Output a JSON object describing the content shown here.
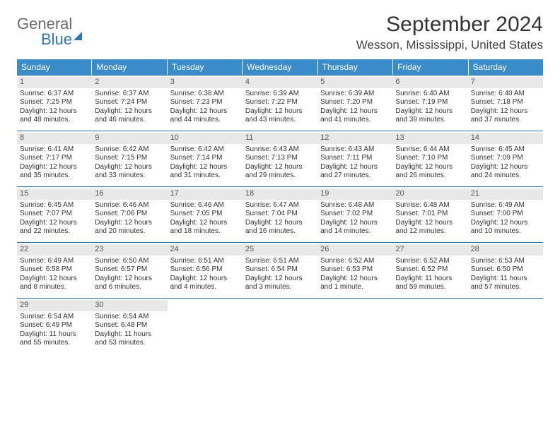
{
  "logo": {
    "text1": "General",
    "text2": "Blue"
  },
  "title": "September 2024",
  "location": "Wesson, Mississippi, United States",
  "colors": {
    "header_bg": "#3a8bc9",
    "header_text": "#ffffff",
    "week_border": "#2f6ba3",
    "daynum_bg": "#e8e8e8",
    "logo_gray": "#6b6b6b",
    "logo_blue": "#2f75b5"
  },
  "dow": [
    "Sunday",
    "Monday",
    "Tuesday",
    "Wednesday",
    "Thursday",
    "Friday",
    "Saturday"
  ],
  "weeks": [
    [
      {
        "n": "1",
        "sr": "Sunrise: 6:37 AM",
        "ss": "Sunset: 7:25 PM",
        "d1": "Daylight: 12 hours",
        "d2": "and 48 minutes."
      },
      {
        "n": "2",
        "sr": "Sunrise: 6:37 AM",
        "ss": "Sunset: 7:24 PM",
        "d1": "Daylight: 12 hours",
        "d2": "and 46 minutes."
      },
      {
        "n": "3",
        "sr": "Sunrise: 6:38 AM",
        "ss": "Sunset: 7:23 PM",
        "d1": "Daylight: 12 hours",
        "d2": "and 44 minutes."
      },
      {
        "n": "4",
        "sr": "Sunrise: 6:39 AM",
        "ss": "Sunset: 7:22 PM",
        "d1": "Daylight: 12 hours",
        "d2": "and 43 minutes."
      },
      {
        "n": "5",
        "sr": "Sunrise: 6:39 AM",
        "ss": "Sunset: 7:20 PM",
        "d1": "Daylight: 12 hours",
        "d2": "and 41 minutes."
      },
      {
        "n": "6",
        "sr": "Sunrise: 6:40 AM",
        "ss": "Sunset: 7:19 PM",
        "d1": "Daylight: 12 hours",
        "d2": "and 39 minutes."
      },
      {
        "n": "7",
        "sr": "Sunrise: 6:40 AM",
        "ss": "Sunset: 7:18 PM",
        "d1": "Daylight: 12 hours",
        "d2": "and 37 minutes."
      }
    ],
    [
      {
        "n": "8",
        "sr": "Sunrise: 6:41 AM",
        "ss": "Sunset: 7:17 PM",
        "d1": "Daylight: 12 hours",
        "d2": "and 35 minutes."
      },
      {
        "n": "9",
        "sr": "Sunrise: 6:42 AM",
        "ss": "Sunset: 7:15 PM",
        "d1": "Daylight: 12 hours",
        "d2": "and 33 minutes."
      },
      {
        "n": "10",
        "sr": "Sunrise: 6:42 AM",
        "ss": "Sunset: 7:14 PM",
        "d1": "Daylight: 12 hours",
        "d2": "and 31 minutes."
      },
      {
        "n": "11",
        "sr": "Sunrise: 6:43 AM",
        "ss": "Sunset: 7:13 PM",
        "d1": "Daylight: 12 hours",
        "d2": "and 29 minutes."
      },
      {
        "n": "12",
        "sr": "Sunrise: 6:43 AM",
        "ss": "Sunset: 7:11 PM",
        "d1": "Daylight: 12 hours",
        "d2": "and 27 minutes."
      },
      {
        "n": "13",
        "sr": "Sunrise: 6:44 AM",
        "ss": "Sunset: 7:10 PM",
        "d1": "Daylight: 12 hours",
        "d2": "and 26 minutes."
      },
      {
        "n": "14",
        "sr": "Sunrise: 6:45 AM",
        "ss": "Sunset: 7:09 PM",
        "d1": "Daylight: 12 hours",
        "d2": "and 24 minutes."
      }
    ],
    [
      {
        "n": "15",
        "sr": "Sunrise: 6:45 AM",
        "ss": "Sunset: 7:07 PM",
        "d1": "Daylight: 12 hours",
        "d2": "and 22 minutes."
      },
      {
        "n": "16",
        "sr": "Sunrise: 6:46 AM",
        "ss": "Sunset: 7:06 PM",
        "d1": "Daylight: 12 hours",
        "d2": "and 20 minutes."
      },
      {
        "n": "17",
        "sr": "Sunrise: 6:46 AM",
        "ss": "Sunset: 7:05 PM",
        "d1": "Daylight: 12 hours",
        "d2": "and 18 minutes."
      },
      {
        "n": "18",
        "sr": "Sunrise: 6:47 AM",
        "ss": "Sunset: 7:04 PM",
        "d1": "Daylight: 12 hours",
        "d2": "and 16 minutes."
      },
      {
        "n": "19",
        "sr": "Sunrise: 6:48 AM",
        "ss": "Sunset: 7:02 PM",
        "d1": "Daylight: 12 hours",
        "d2": "and 14 minutes."
      },
      {
        "n": "20",
        "sr": "Sunrise: 6:48 AM",
        "ss": "Sunset: 7:01 PM",
        "d1": "Daylight: 12 hours",
        "d2": "and 12 minutes."
      },
      {
        "n": "21",
        "sr": "Sunrise: 6:49 AM",
        "ss": "Sunset: 7:00 PM",
        "d1": "Daylight: 12 hours",
        "d2": "and 10 minutes."
      }
    ],
    [
      {
        "n": "22",
        "sr": "Sunrise: 6:49 AM",
        "ss": "Sunset: 6:58 PM",
        "d1": "Daylight: 12 hours",
        "d2": "and 8 minutes."
      },
      {
        "n": "23",
        "sr": "Sunrise: 6:50 AM",
        "ss": "Sunset: 6:57 PM",
        "d1": "Daylight: 12 hours",
        "d2": "and 6 minutes."
      },
      {
        "n": "24",
        "sr": "Sunrise: 6:51 AM",
        "ss": "Sunset: 6:56 PM",
        "d1": "Daylight: 12 hours",
        "d2": "and 4 minutes."
      },
      {
        "n": "25",
        "sr": "Sunrise: 6:51 AM",
        "ss": "Sunset: 6:54 PM",
        "d1": "Daylight: 12 hours",
        "d2": "and 3 minutes."
      },
      {
        "n": "26",
        "sr": "Sunrise: 6:52 AM",
        "ss": "Sunset: 6:53 PM",
        "d1": "Daylight: 12 hours",
        "d2": "and 1 minute."
      },
      {
        "n": "27",
        "sr": "Sunrise: 6:52 AM",
        "ss": "Sunset: 6:52 PM",
        "d1": "Daylight: 11 hours",
        "d2": "and 59 minutes."
      },
      {
        "n": "28",
        "sr": "Sunrise: 6:53 AM",
        "ss": "Sunset: 6:50 PM",
        "d1": "Daylight: 11 hours",
        "d2": "and 57 minutes."
      }
    ],
    [
      {
        "n": "29",
        "sr": "Sunrise: 6:54 AM",
        "ss": "Sunset: 6:49 PM",
        "d1": "Daylight: 11 hours",
        "d2": "and 55 minutes."
      },
      {
        "n": "30",
        "sr": "Sunrise: 6:54 AM",
        "ss": "Sunset: 6:48 PM",
        "d1": "Daylight: 11 hours",
        "d2": "and 53 minutes."
      },
      {
        "empty": true
      },
      {
        "empty": true
      },
      {
        "empty": true
      },
      {
        "empty": true
      },
      {
        "empty": true
      }
    ]
  ]
}
